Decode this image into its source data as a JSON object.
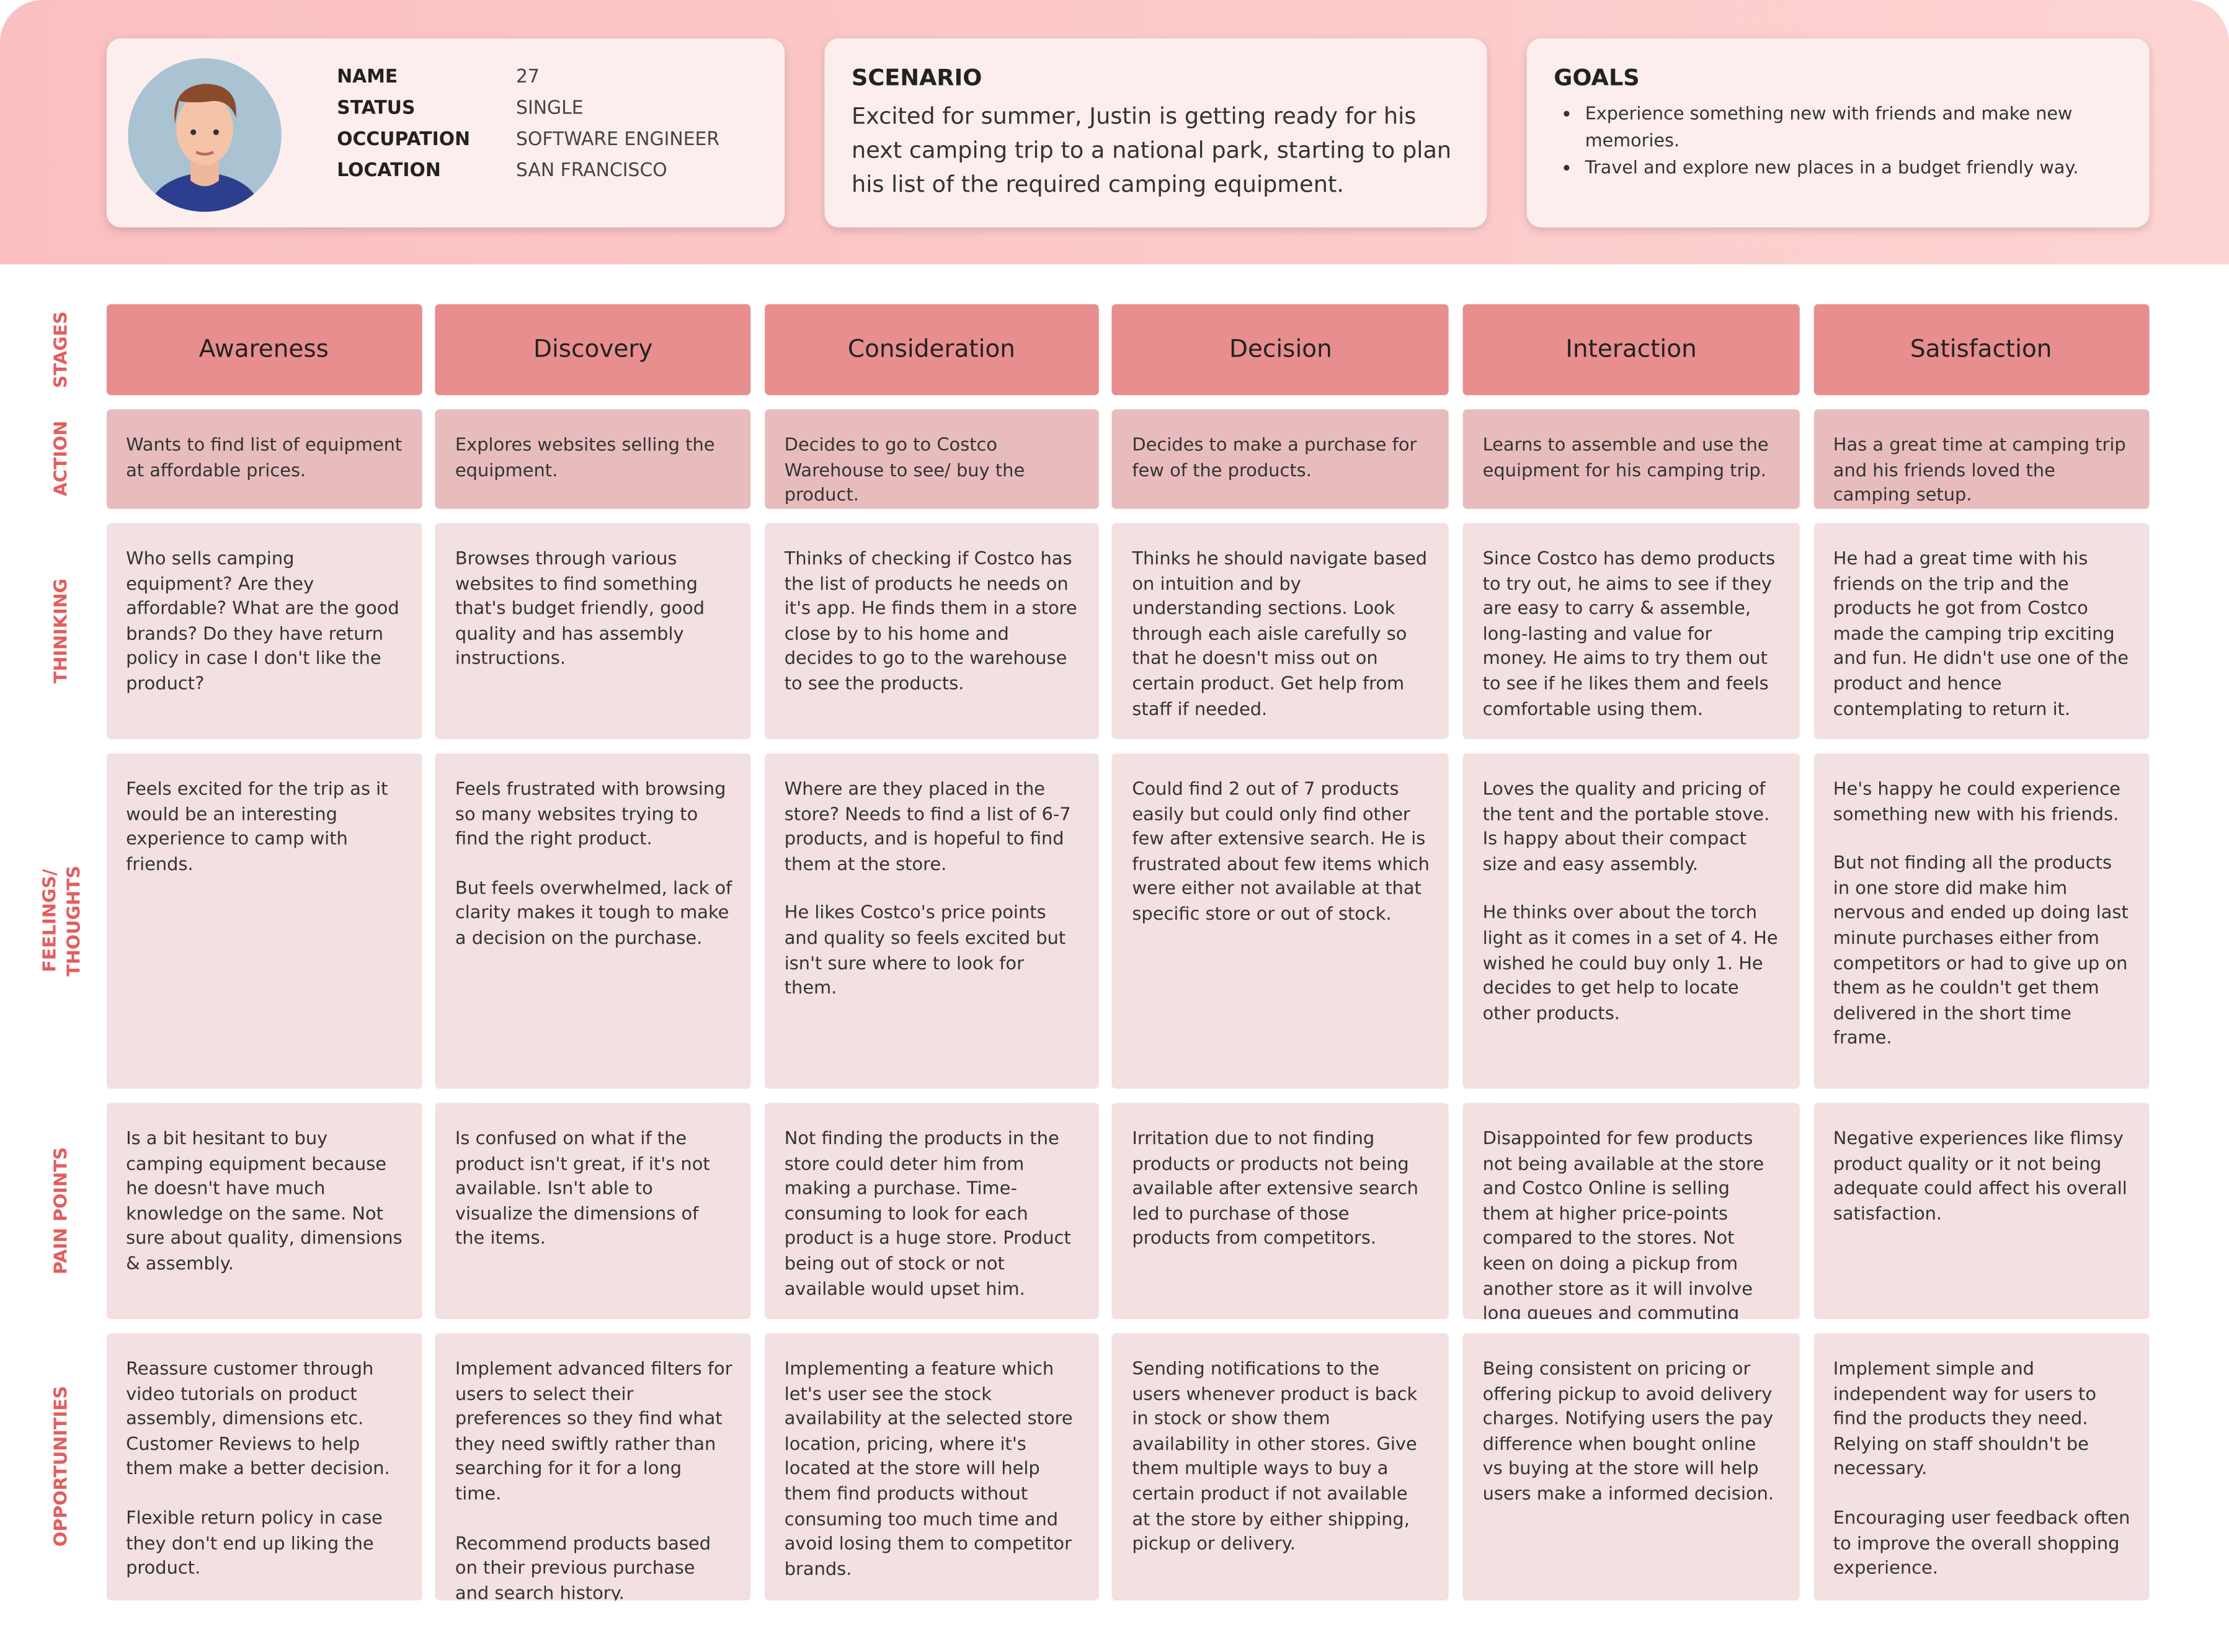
{
  "persona": {
    "fields": [
      {
        "label": "NAME",
        "value": "27"
      },
      {
        "label": "STATUS",
        "value": "SINGLE"
      },
      {
        "label": "OCCUPATION",
        "value": "SOFTWARE ENGINEER"
      },
      {
        "label": "LOCATION",
        "value": "SAN FRANCISCO"
      }
    ]
  },
  "scenario": {
    "title": "SCENARIO",
    "text": "Excited for summer, Justin is getting ready for his next camping trip to a national park, starting to plan his list of the required camping equipment."
  },
  "goals": {
    "title": "GOALS",
    "items": [
      "Experience something new with friends and make new memories.",
      "Travel and explore new places in a budget friendly way."
    ]
  },
  "row_labels": [
    "STAGES",
    "ACTION",
    "THINIKING",
    "FEELINGS/ THOUGHTS",
    "PAIN POINTS",
    "OPPORTUNITIES"
  ],
  "stages": [
    "Awareness",
    "Discovery",
    "Consideration",
    "Decision",
    "Interaction",
    "Satisfaction"
  ],
  "rows": [
    [
      [
        "Wants to find list of equipment at affordable prices."
      ],
      [
        "Explores websites selling the equipment."
      ],
      [
        "Decides to go to Costco Warehouse to see/ buy the product."
      ],
      [
        "Decides to make a purchase for few of the products."
      ],
      [
        "Learns to assemble and use the equipment for his camping trip."
      ],
      [
        "Has a great time at camping trip and his friends loved the  camping setup."
      ]
    ],
    [
      [
        "Who sells camping equipment? Are they affordable? What are the good brands? Do they have return policy in case I don't like the product?"
      ],
      [
        "Browses through various websites to find something that's budget friendly, good quality and has assembly instructions."
      ],
      [
        "Thinks of checking if Costco has the list of products he needs on it's app. He finds them in  a store close by to his home and decides to go to the warehouse to see the products."
      ],
      [
        "Thinks he should navigate based on intuition and by understanding sections. Look through each aisle carefully so that he doesn't miss out on certain product. Get help from staff if needed."
      ],
      [
        "Since Costco has demo products to try out, he aims to see if they are easy to carry & assemble, long-lasting and value for money. He aims to try them out to see if he likes them and feels comfortable using them."
      ],
      [
        "He had a great time with his friends on the trip and the products he got from Costco made the camping trip exciting and fun. He didn't use one of the product and hence contemplating to return it."
      ]
    ],
    [
      [
        "Feels excited for the trip as it would be an interesting experience to camp with friends."
      ],
      [
        "Feels frustrated with browsing so many websites trying to find the right product.",
        "But feels overwhelmed, lack of clarity makes it tough to make a decision on the purchase."
      ],
      [
        "Where are they placed in the store? Needs to find a list of 6-7 products, and is hopeful to find them at the store.",
        "He likes Costco's price points and quality so feels excited but isn't sure where to look for them."
      ],
      [
        "Could find 2 out of 7 products easily but could only find other few after extensive search. He is frustrated about few items which were either not available at that specific store or out of stock."
      ],
      [
        "Loves the quality and pricing of the tent and the portable stove. Is happy about their compact size and easy assembly.",
        "He thinks over about the torch light as it comes in a set of 4. He wished he could buy only 1. He decides to get help to locate other products."
      ],
      [
        "He's happy he could experience something new with his friends.",
        "But not finding all the products in one store did make him nervous and ended up doing last minute purchases either from competitors or had to give up on them as he couldn't get them delivered in the short time frame."
      ]
    ],
    [
      [
        "Is a bit hesitant to buy camping equipment because he doesn't have much knowledge on the same. Not sure about quality, dimensions & assembly."
      ],
      [
        "Is confused on what if the product isn't great, if it's not available. Isn't able to visualize the dimensions of the items."
      ],
      [
        "Not finding the products in the store could deter him from making a purchase. Time-consuming to look for each product is a huge store. Product being out of stock or not available would upset him."
      ],
      [
        "Irritation due to not finding products or products not being available after extensive search led to purchase of those products from competitors."
      ],
      [
        "Disappointed for few products not being available at the store and Costco Online is selling them at higher price-points compared to the stores. Not keen on doing a pickup from another store as it will involve long queues and commuting there."
      ],
      [
        "Negative experiences like flimsy product quality or it not being adequate could affect his overall satisfaction."
      ]
    ],
    [
      [
        "Reassure customer through video tutorials on product assembly, dimensions etc. Customer Reviews to help them make a better decision.",
        "Flexible return policy in case they don't end up liking the product."
      ],
      [
        "Implement advanced filters for users to select their preferences so they find what they need swiftly rather than searching for it for a long time.",
        "Recommend products based on their previous purchase and search history."
      ],
      [
        "Implementing a feature which let's user see the stock availability at the selected store location, pricing, where it's located at the store will help them find products without consuming too much time and avoid losing them to competitor brands."
      ],
      [
        "Sending notifications to the users whenever product is back in stock or show them availability in other stores. Give them multiple ways to buy a certain product if not available at the store by either shipping, pickup or delivery."
      ],
      [
        "Being consistent on pricing or offering pickup to avoid delivery charges. Notifying users the pay difference when bought online vs buying at the store will help users make a informed decision."
      ],
      [
        "Implement simple and independent way for users to find the products they need. Relying on staff shouldn't be necessary.",
        "Encouraging user feedback often to improve the overall shopping experience."
      ]
    ]
  ]
}
